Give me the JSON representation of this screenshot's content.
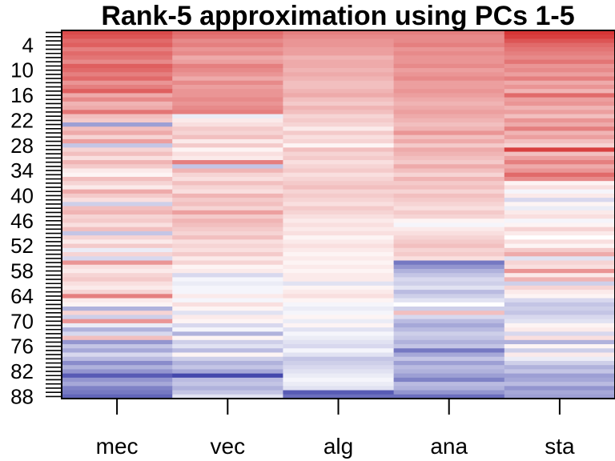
{
  "chart_data": {
    "type": "heatmap",
    "title": "Rank-5 approximation using PCs 1-5",
    "xlabel": "",
    "ylabel": "",
    "columns": [
      "mec",
      "vec",
      "alg",
      "ana",
      "sta"
    ],
    "rows": 88,
    "y_tick_labels": [
      "4",
      "10",
      "16",
      "22",
      "28",
      "34",
      "40",
      "46",
      "52",
      "58",
      "64",
      "70",
      "76",
      "82",
      "88"
    ],
    "palette": {
      "low": "#3a3ea8",
      "mid": "#ffffff",
      "high": "#d42a2a"
    },
    "scale": [
      -1,
      1
    ],
    "row_values": [
      [
        0.85,
        0.7,
        0.6,
        0.6,
        0.95
      ],
      [
        0.8,
        0.65,
        0.55,
        0.55,
        0.9
      ],
      [
        0.7,
        0.55,
        0.5,
        0.55,
        0.8
      ],
      [
        0.75,
        0.6,
        0.5,
        0.6,
        0.7
      ],
      [
        0.6,
        0.5,
        0.45,
        0.5,
        0.65
      ],
      [
        0.7,
        0.55,
        0.45,
        0.55,
        0.6
      ],
      [
        0.65,
        0.4,
        0.35,
        0.5,
        0.55
      ],
      [
        0.55,
        0.45,
        0.4,
        0.5,
        0.65
      ],
      [
        0.75,
        0.6,
        0.4,
        0.55,
        0.5
      ],
      [
        0.7,
        0.55,
        0.35,
        0.45,
        0.55
      ],
      [
        0.6,
        0.5,
        0.4,
        0.5,
        0.45
      ],
      [
        0.7,
        0.4,
        0.35,
        0.55,
        0.6
      ],
      [
        0.5,
        0.55,
        0.3,
        0.45,
        0.4
      ],
      [
        0.6,
        0.45,
        0.3,
        0.45,
        0.5
      ],
      [
        0.75,
        0.5,
        0.35,
        0.5,
        0.35
      ],
      [
        0.4,
        0.5,
        0.4,
        0.45,
        0.7
      ],
      [
        0.55,
        0.55,
        0.3,
        0.4,
        0.45
      ],
      [
        0.35,
        0.5,
        0.25,
        0.35,
        0.5
      ],
      [
        0.4,
        0.55,
        0.35,
        0.4,
        0.35
      ],
      [
        0.65,
        0.6,
        0.3,
        0.45,
        0.45
      ],
      [
        0.3,
        -0.1,
        0.2,
        0.4,
        0.3
      ],
      [
        0.25,
        0.1,
        0.25,
        0.35,
        0.5
      ],
      [
        -0.5,
        0.15,
        0.2,
        0.3,
        0.4
      ],
      [
        0.3,
        0.25,
        0.1,
        0.35,
        0.6
      ],
      [
        0.4,
        0.2,
        0.25,
        0.5,
        0.35
      ],
      [
        0.2,
        0.3,
        0.15,
        0.3,
        0.45
      ],
      [
        0.45,
        0.1,
        0.2,
        0.4,
        0.3
      ],
      [
        -0.3,
        0.25,
        0.05,
        0.25,
        0.2
      ],
      [
        0.2,
        0.05,
        0.3,
        0.4,
        0.9
      ],
      [
        0.3,
        0.15,
        0.2,
        0.35,
        0.3
      ],
      [
        0.15,
        0.1,
        0.25,
        0.3,
        0.45
      ],
      [
        0.35,
        0.6,
        0.15,
        0.25,
        0.6
      ],
      [
        0.25,
        -0.3,
        0.2,
        0.4,
        0.4
      ],
      [
        0.1,
        0.35,
        0.25,
        0.3,
        0.5
      ],
      [
        0.05,
        0.2,
        0.15,
        0.2,
        0.7
      ],
      [
        0.3,
        0.15,
        0.2,
        0.35,
        0.55
      ],
      [
        0.2,
        0.3,
        0.25,
        0.25,
        0.05
      ],
      [
        0.1,
        0.2,
        0.3,
        0.3,
        0.15
      ],
      [
        0.4,
        0.15,
        0.2,
        0.2,
        -0.05
      ],
      [
        0.25,
        0.35,
        0.25,
        0.3,
        0.1
      ],
      [
        0.15,
        0.25,
        0.2,
        0.25,
        -0.2
      ],
      [
        -0.25,
        0.3,
        0.15,
        0.2,
        0.05
      ],
      [
        0.3,
        0.2,
        0.25,
        0.15,
        -0.1
      ],
      [
        0.35,
        0.45,
        0.2,
        0.25,
        0.1
      ],
      [
        0.2,
        0.25,
        0.15,
        0.2,
        0.15
      ],
      [
        0.25,
        0.35,
        0.1,
        0.05,
        -0.05
      ],
      [
        0.15,
        0.3,
        0.15,
        -0.05,
        0.05
      ],
      [
        0.3,
        0.25,
        0.1,
        0.1,
        0.2
      ],
      [
        -0.3,
        0.2,
        0.15,
        0.15,
        0.1
      ],
      [
        0.2,
        0.3,
        0.05,
        0.2,
        0.0
      ],
      [
        0.1,
        0.15,
        0.1,
        0.25,
        0.15
      ],
      [
        0.25,
        0.2,
        0.15,
        0.3,
        0.05
      ],
      [
        -0.1,
        0.15,
        0.1,
        0.2,
        0.25
      ],
      [
        0.2,
        0.25,
        0.05,
        0.25,
        0.4
      ],
      [
        -0.2,
        0.1,
        0.1,
        0.15,
        -0.15
      ],
      [
        0.5,
        0.2,
        0.05,
        -0.7,
        0.2
      ],
      [
        0.15,
        0.05,
        0.1,
        -0.55,
        0.15
      ],
      [
        0.1,
        0.1,
        0.05,
        -0.4,
        0.5
      ],
      [
        0.2,
        -0.2,
        0.1,
        -0.3,
        0.1
      ],
      [
        0.25,
        -0.05,
        0.1,
        -0.2,
        0.35
      ],
      [
        0.15,
        -0.1,
        -0.15,
        -0.25,
        -0.25
      ],
      [
        0.1,
        -0.05,
        0.05,
        -0.15,
        0.2
      ],
      [
        0.2,
        -0.05,
        0.1,
        -0.35,
        0.1
      ],
      [
        0.6,
        0.1,
        0.15,
        -0.25,
        0.05
      ],
      [
        0.1,
        -0.05,
        0.05,
        -0.15,
        -0.2
      ],
      [
        0.05,
        0.15,
        -0.05,
        0.0,
        -0.3
      ],
      [
        -0.4,
        0.05,
        -0.1,
        -0.25,
        -0.25
      ],
      [
        0.2,
        -0.15,
        -0.05,
        0.3,
        -0.3
      ],
      [
        -0.25,
        0.1,
        0.05,
        -0.2,
        -0.2
      ],
      [
        0.5,
        0.05,
        -0.1,
        -0.35,
        -0.15
      ],
      [
        -0.1,
        -0.2,
        0.05,
        -0.45,
        0.05
      ],
      [
        -0.4,
        -0.05,
        -0.15,
        -0.35,
        0.1
      ],
      [
        -0.2,
        -0.4,
        -0.05,
        -0.25,
        -0.2
      ],
      [
        0.3,
        0.05,
        -0.1,
        -0.3,
        0.15
      ],
      [
        -0.55,
        -0.25,
        -0.15,
        -0.4,
        -0.4
      ],
      [
        -0.3,
        -0.15,
        -0.2,
        -0.3,
        0.05
      ],
      [
        -0.45,
        -0.35,
        -0.05,
        -0.7,
        -0.25
      ],
      [
        -0.2,
        0.05,
        -0.15,
        -0.45,
        0.1
      ],
      [
        -0.35,
        -0.25,
        -0.3,
        -0.3,
        -0.1
      ],
      [
        -0.6,
        -0.4,
        -0.25,
        -0.5,
        -0.25
      ],
      [
        -0.4,
        -0.3,
        -0.2,
        -0.35,
        -0.4
      ],
      [
        -0.55,
        -0.45,
        -0.15,
        -0.4,
        -0.3
      ],
      [
        -0.85,
        -0.95,
        -0.1,
        -0.5,
        -0.5
      ],
      [
        -0.55,
        -0.35,
        -0.05,
        -0.65,
        -0.45
      ],
      [
        -0.45,
        -0.3,
        -0.1,
        -0.35,
        -0.35
      ],
      [
        -0.65,
        -0.4,
        -0.15,
        -0.4,
        -0.55
      ],
      [
        -0.7,
        -0.3,
        -0.85,
        -0.55,
        -0.45
      ],
      [
        -0.8,
        -0.15,
        -0.75,
        -0.75,
        -0.5
      ]
    ]
  }
}
